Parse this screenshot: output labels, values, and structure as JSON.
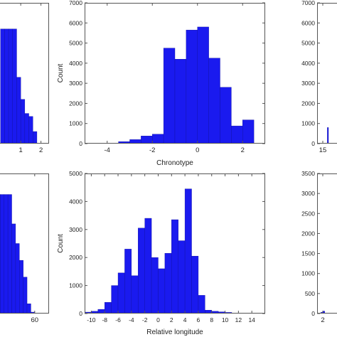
{
  "chart_data": [
    {
      "id": "panel-top-left",
      "type": "bar",
      "xlabel": "",
      "ylabel": "",
      "xlim": [
        -0.2,
        2.4
      ],
      "ylim": [
        0,
        7000
      ],
      "xticks": [
        1,
        2
      ],
      "xtick_labels": [
        "1",
        "2"
      ],
      "yticks": [],
      "bin_width": 0.2,
      "bins": [
        {
          "x": 0.0,
          "value": 5700
        },
        {
          "x": 0.2,
          "value": 5700
        },
        {
          "x": 0.4,
          "value": 5700
        },
        {
          "x": 0.6,
          "value": 5700
        },
        {
          "x": 0.8,
          "value": 3300
        },
        {
          "x": 1.0,
          "value": 2200
        },
        {
          "x": 1.2,
          "value": 1500
        },
        {
          "x": 1.4,
          "value": 1350
        },
        {
          "x": 1.6,
          "value": 600
        }
      ]
    },
    {
      "id": "panel-top-middle",
      "type": "bar",
      "xlabel": "Chronotype",
      "ylabel": "Count",
      "xlim": [
        -5,
        3
      ],
      "ylim": [
        0,
        7000
      ],
      "xticks": [
        -4,
        -2,
        0,
        2
      ],
      "xtick_labels": [
        "-4",
        "-2",
        "0",
        "2"
      ],
      "yticks": [
        0,
        1000,
        2000,
        3000,
        4000,
        5000,
        6000,
        7000
      ],
      "ytick_labels": [
        "0",
        "1000",
        "2000",
        "3000",
        "4000",
        "5000",
        "6000",
        "7000"
      ],
      "bin_width": 0.5,
      "bins": [
        {
          "x": -4.0,
          "value": 20
        },
        {
          "x": -3.5,
          "value": 100
        },
        {
          "x": -3.0,
          "value": 200
        },
        {
          "x": -2.5,
          "value": 380
        },
        {
          "x": -2.0,
          "value": 470
        },
        {
          "x": -1.5,
          "value": 4750
        },
        {
          "x": -1.0,
          "value": 4200
        },
        {
          "x": -0.5,
          "value": 5650
        },
        {
          "x": 0.0,
          "value": 5800
        },
        {
          "x": 0.5,
          "value": 4250
        },
        {
          "x": 1.0,
          "value": 2800
        },
        {
          "x": 1.5,
          "value": 880
        },
        {
          "x": 2.0,
          "value": 1180
        }
      ]
    },
    {
      "id": "panel-top-right",
      "type": "bar",
      "xlabel": "",
      "ylabel": "",
      "xlim": [
        13.5,
        21
      ],
      "ylim": [
        0,
        7000
      ],
      "xticks": [
        15
      ],
      "xtick_labels": [
        "15"
      ],
      "yticks": [
        0,
        1000,
        2000,
        3000,
        4000,
        5000,
        6000,
        7000
      ],
      "ytick_labels": [
        "0",
        "1000",
        "2000",
        "3000",
        "4000",
        "5000",
        "6000",
        "7000"
      ],
      "bin_width": 0.3,
      "bins": [
        {
          "x": 16.2,
          "value": 800
        }
      ]
    },
    {
      "id": "panel-bottom-left",
      "type": "bar",
      "xlabel": "",
      "ylabel": "",
      "xlim": [
        20,
        75
      ],
      "ylim": [
        0,
        5000
      ],
      "xticks": [
        60
      ],
      "xtick_labels": [
        "60"
      ],
      "yticks": [],
      "bin_width": 4,
      "bins": [
        {
          "x": 20,
          "value": 4250
        },
        {
          "x": 24,
          "value": 4250
        },
        {
          "x": 28,
          "value": 4250
        },
        {
          "x": 32,
          "value": 4250
        },
        {
          "x": 36,
          "value": 3200
        },
        {
          "x": 40,
          "value": 2500
        },
        {
          "x": 44,
          "value": 1900
        },
        {
          "x": 48,
          "value": 1300
        },
        {
          "x": 52,
          "value": 350
        },
        {
          "x": 56,
          "value": 50
        }
      ]
    },
    {
      "id": "panel-bottom-middle",
      "type": "bar",
      "xlabel": "Relative longitude",
      "ylabel": "Count",
      "xlim": [
        -11,
        16
      ],
      "ylim": [
        0,
        5000
      ],
      "xticks": [
        -10,
        -8,
        -6,
        -4,
        -2,
        0,
        2,
        4,
        6,
        8,
        10,
        12,
        14
      ],
      "xtick_labels": [
        "-10",
        "-8",
        "-6",
        "-4",
        "-2",
        "0",
        "2",
        "4",
        "6",
        "8",
        "10",
        "12",
        "14"
      ],
      "yticks": [
        0,
        1000,
        2000,
        3000,
        4000,
        5000
      ],
      "ytick_labels": [
        "0",
        "1000",
        "2000",
        "3000",
        "4000",
        "5000"
      ],
      "bin_width": 1,
      "bins": [
        {
          "x": -11,
          "value": 50
        },
        {
          "x": -10,
          "value": 80
        },
        {
          "x": -9,
          "value": 150
        },
        {
          "x": -8,
          "value": 400
        },
        {
          "x": -7,
          "value": 1000
        },
        {
          "x": -6,
          "value": 1450
        },
        {
          "x": -5,
          "value": 2300
        },
        {
          "x": -4,
          "value": 1350
        },
        {
          "x": -3,
          "value": 3050
        },
        {
          "x": -2,
          "value": 3400
        },
        {
          "x": -1,
          "value": 2000
        },
        {
          "x": 0,
          "value": 1600
        },
        {
          "x": 1,
          "value": 2150
        },
        {
          "x": 2,
          "value": 3350
        },
        {
          "x": 3,
          "value": 2600
        },
        {
          "x": 4,
          "value": 4450
        },
        {
          "x": 5,
          "value": 2050
        },
        {
          "x": 6,
          "value": 650
        },
        {
          "x": 7,
          "value": 120
        },
        {
          "x": 8,
          "value": 80
        },
        {
          "x": 9,
          "value": 60
        },
        {
          "x": 10,
          "value": 40
        },
        {
          "x": 11,
          "value": 20
        },
        {
          "x": 12,
          "value": 10
        }
      ]
    },
    {
      "id": "panel-bottom-right",
      "type": "bar",
      "xlabel": "",
      "ylabel": "",
      "xlim": [
        0.5,
        8
      ],
      "ylim": [
        0,
        3500
      ],
      "xticks": [
        2
      ],
      "xtick_labels": [
        "2"
      ],
      "yticks": [
        0,
        500,
        1000,
        1500,
        2000,
        2500,
        3000,
        3500
      ],
      "ytick_labels": [
        "0",
        "500",
        "1000",
        "1500",
        "2000",
        "2500",
        "3000",
        "3500"
      ],
      "bin_width": 0.5,
      "bins": [
        {
          "x": 1.5,
          "value": 30
        },
        {
          "x": 2.0,
          "value": 60
        }
      ]
    }
  ]
}
